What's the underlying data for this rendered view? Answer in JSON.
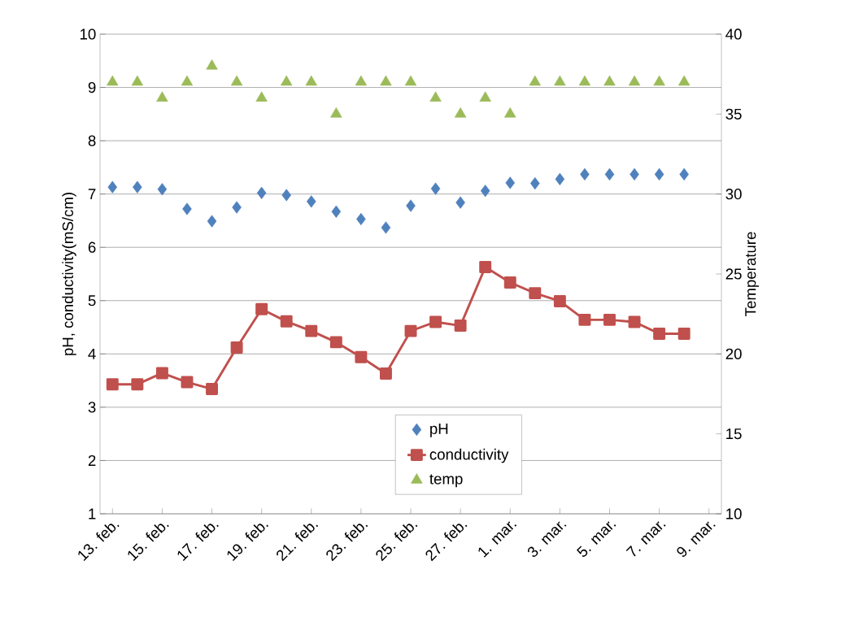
{
  "chart_data": {
    "type": "line",
    "ylabel": "pH, conductivity(mS/cm)",
    "y2label": "Temperature",
    "categories": [
      "13. feb.",
      null,
      "15. feb.",
      null,
      "17. feb.",
      null,
      "19. feb.",
      null,
      "21. feb.",
      null,
      "23. feb.",
      null,
      "25. feb.",
      null,
      "27. feb.",
      null,
      "1. mar.",
      null,
      "3. mar.",
      null,
      "5. mar.",
      null,
      "7. mar.",
      null,
      "9. mar."
    ],
    "series": [
      {
        "name": "pH",
        "type": "scatter",
        "marker": "diamond",
        "color": "#4f81bd",
        "values": [
          7.13,
          7.13,
          7.09,
          6.72,
          6.49,
          6.75,
          7.02,
          6.98,
          6.86,
          6.67,
          6.53,
          6.37,
          6.78,
          7.1,
          6.84,
          7.06,
          7.21,
          7.2,
          7.28,
          7.37,
          7.37,
          7.37,
          7.37,
          7.37,
          null
        ]
      },
      {
        "name": "conductivity",
        "marker": "square",
        "line_style": "solid",
        "color": "#c0504d",
        "values": [
          3.43,
          3.43,
          3.64,
          3.47,
          3.34,
          4.12,
          4.84,
          4.61,
          4.43,
          4.22,
          3.94,
          3.63,
          4.43,
          4.6,
          4.53,
          5.63,
          5.34,
          5.14,
          4.99,
          4.64,
          4.64,
          4.6,
          4.38,
          4.38,
          null
        ]
      },
      {
        "name": "temp",
        "type": "scatter",
        "marker": "triangle",
        "axis": "y2",
        "color": "#9bbb59",
        "values": [
          37,
          37,
          36,
          37,
          38,
          37,
          36,
          37,
          37,
          35,
          37,
          37,
          37,
          36,
          35,
          36,
          35,
          37,
          37,
          37,
          37,
          37,
          37,
          37,
          null
        ]
      }
    ],
    "ylim": [
      1,
      10
    ],
    "yticks": [
      1,
      2,
      3,
      4,
      5,
      6,
      7,
      8,
      9,
      10
    ],
    "y2lim": [
      10,
      40
    ],
    "y2ticks": [
      10,
      15,
      20,
      25,
      30,
      35,
      40
    ],
    "grid": "y",
    "legend": "bottom"
  }
}
